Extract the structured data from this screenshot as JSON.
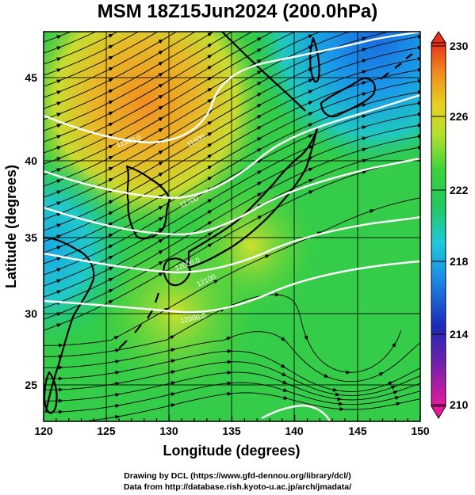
{
  "title": "MSM 18Z15Jun2024 (200.0hPa)",
  "x_axis": {
    "label": "Longitude (degrees)",
    "ticks": [
      "120",
      "125",
      "130",
      "135",
      "140",
      "145",
      "150"
    ],
    "range": [
      120,
      150
    ]
  },
  "y_axis": {
    "label": "Latitude  (degrees)",
    "ticks": [
      "25",
      "30",
      "35",
      "40",
      "45"
    ],
    "range": [
      22.5,
      48
    ]
  },
  "colorbar": {
    "ticks": [
      "230",
      "226",
      "222",
      "218",
      "214",
      "210"
    ],
    "range": [
      210,
      230
    ],
    "colors": [
      "#e8189a",
      "#2a2aa8",
      "#1f7ee8",
      "#1ec9e0",
      "#22c95a",
      "#3fd43a",
      "#b8e030",
      "#e8d020",
      "#f0a020",
      "#e84020"
    ]
  },
  "contour_labels": [
    "11500.0",
    "11500",
    "11700",
    "12000.0",
    "12100",
    "12000.0"
  ],
  "footer": {
    "line1": "Drawing by DCL (https://www.gfd-dennou.org/library/dcl/)",
    "line2": "Data from http://database.rish.kyoto-u.ac.jp/arch/jmadata/"
  }
}
